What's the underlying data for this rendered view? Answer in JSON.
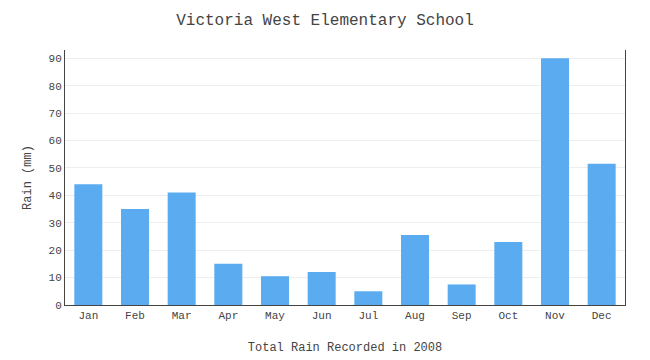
{
  "chart_data": {
    "type": "bar",
    "title": "Victoria West Elementary School",
    "xlabel": "Total Rain Recorded in 2008",
    "ylabel": "Rain (mm)",
    "categories": [
      "Jan",
      "Feb",
      "Mar",
      "Apr",
      "May",
      "Jun",
      "Jul",
      "Aug",
      "Sep",
      "Oct",
      "Nov",
      "Dec"
    ],
    "values": [
      44,
      35,
      41,
      15,
      10.5,
      12,
      5,
      25.5,
      7.5,
      23,
      90,
      51.5
    ],
    "color": "#5aabf0",
    "ylim": [
      0,
      93
    ],
    "yticks": [
      0,
      10,
      20,
      30,
      40,
      50,
      60,
      70,
      80,
      90
    ],
    "grid": true
  }
}
